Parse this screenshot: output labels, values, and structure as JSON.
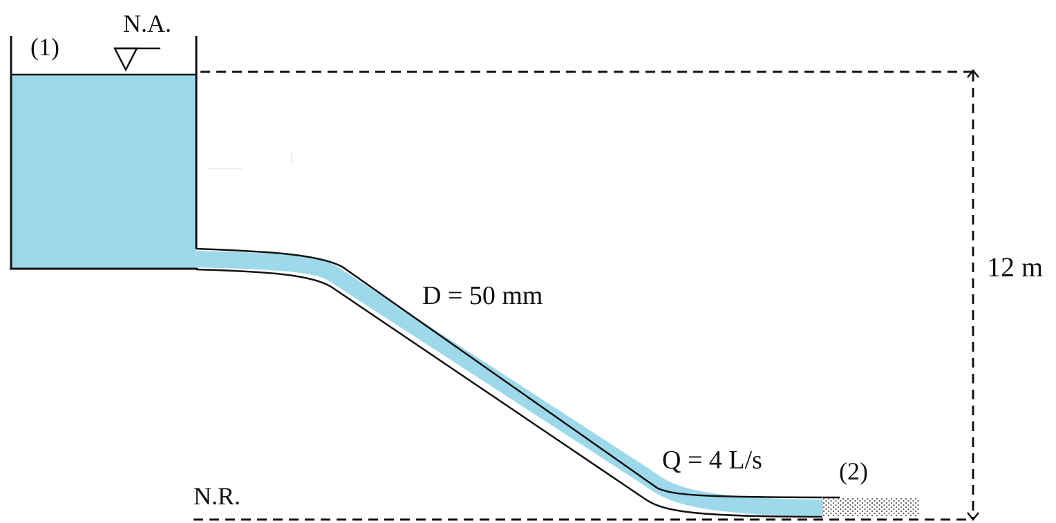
{
  "labels": {
    "point1": "(1)",
    "point2": "(2)",
    "water_level": "N.A.",
    "reference_level": "N.R.",
    "diameter": "D = 50 mm",
    "flow": "Q = 4 L/s",
    "height": "12 m"
  },
  "colors": {
    "water": "#9dd9ea",
    "line": "#111111"
  }
}
